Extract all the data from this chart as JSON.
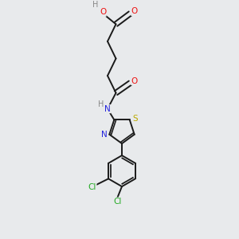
{
  "bg_color": "#e8eaec",
  "bond_color": "#1a1a1a",
  "atom_colors": {
    "O": "#ee1111",
    "N": "#2222dd",
    "S": "#bbaa00",
    "Cl": "#22aa22",
    "C": "#1a1a1a",
    "H": "#888888"
  },
  "figsize": [
    3.0,
    3.0
  ],
  "dpi": 100,
  "lw": 1.4,
  "fontsize": 7.5
}
